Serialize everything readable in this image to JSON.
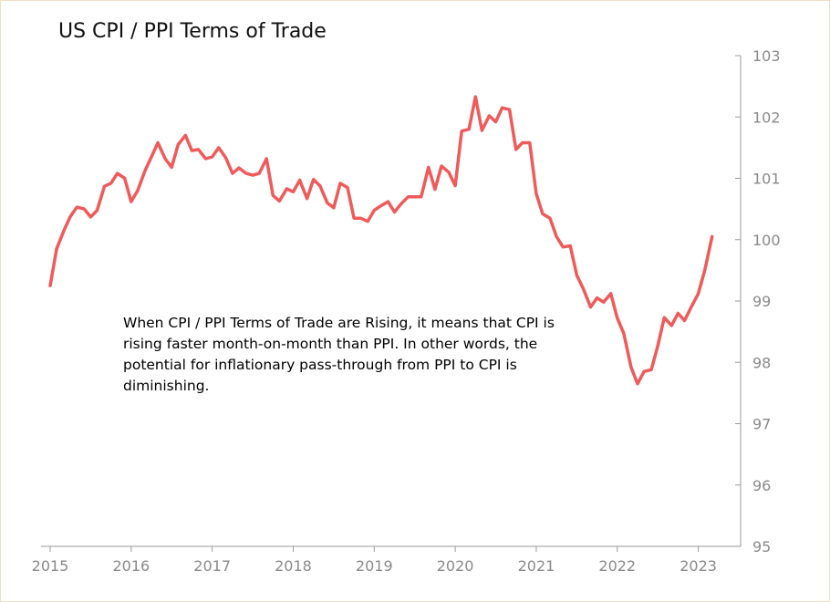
{
  "chart_data": {
    "type": "line",
    "title": "US CPI / PPI Terms of Trade",
    "annotation": "When CPI / PPI Terms of Trade are Rising, it means that CPI is rising faster month-on-month than PPI. In other words, the potential for inflationary pass-through from PPI to CPI is diminishing.",
    "xlabel": "",
    "ylabel": "",
    "x_ticks": [
      "2015",
      "2016",
      "2017",
      "2018",
      "2019",
      "2020",
      "2021",
      "2022",
      "2023"
    ],
    "y_ticks": [
      "95",
      "96",
      "97",
      "98",
      "99",
      "100",
      "101",
      "102",
      "103"
    ],
    "xlim": [
      2015.0,
      2023.5
    ],
    "ylim": [
      95,
      103
    ],
    "y_axis_position": "right",
    "series": [
      {
        "name": "US CPI / PPI Terms of Trade",
        "color": "#f05a5a",
        "x": [
          2015.0,
          2015.08,
          2015.17,
          2015.25,
          2015.33,
          2015.42,
          2015.5,
          2015.58,
          2015.67,
          2015.75,
          2015.83,
          2015.92,
          2016.0,
          2016.08,
          2016.17,
          2016.25,
          2016.33,
          2016.42,
          2016.5,
          2016.58,
          2016.67,
          2016.75,
          2016.83,
          2016.92,
          2017.0,
          2017.08,
          2017.17,
          2017.25,
          2017.33,
          2017.42,
          2017.5,
          2017.58,
          2017.67,
          2017.75,
          2017.83,
          2017.92,
          2018.0,
          2018.08,
          2018.17,
          2018.25,
          2018.33,
          2018.42,
          2018.5,
          2018.58,
          2018.67,
          2018.75,
          2018.83,
          2018.92,
          2019.0,
          2019.08,
          2019.17,
          2019.25,
          2019.33,
          2019.42,
          2019.5,
          2019.58,
          2019.67,
          2019.75,
          2019.83,
          2019.92,
          2020.0,
          2020.08,
          2020.17,
          2020.25,
          2020.33,
          2020.42,
          2020.5,
          2020.58,
          2020.67,
          2020.75,
          2020.83,
          2020.92,
          2021.0,
          2021.08,
          2021.17,
          2021.25,
          2021.33,
          2021.42,
          2021.5,
          2021.58,
          2021.67,
          2021.75,
          2021.83,
          2021.92,
          2022.0,
          2022.08,
          2022.17,
          2022.25,
          2022.33,
          2022.42,
          2022.5,
          2022.58,
          2022.67,
          2022.75,
          2022.83,
          2022.92,
          2023.0,
          2023.08,
          2023.17
        ],
        "values": [
          99.25,
          99.85,
          100.15,
          100.38,
          100.53,
          100.5,
          100.37,
          100.48,
          100.87,
          100.92,
          101.08,
          101.0,
          100.62,
          100.8,
          101.12,
          101.35,
          101.58,
          101.32,
          101.18,
          101.55,
          101.7,
          101.45,
          101.47,
          101.32,
          101.35,
          101.5,
          101.33,
          101.08,
          101.17,
          101.08,
          101.05,
          101.08,
          101.32,
          100.72,
          100.63,
          100.83,
          100.78,
          100.97,
          100.67,
          100.98,
          100.88,
          100.6,
          100.52,
          100.92,
          100.85,
          100.35,
          100.35,
          100.3,
          100.48,
          100.55,
          100.62,
          100.45,
          100.58,
          100.7,
          100.7,
          100.7,
          101.18,
          100.82,
          101.2,
          101.1,
          100.88,
          101.77,
          101.8,
          102.33,
          101.78,
          102.02,
          101.92,
          102.15,
          102.12,
          101.47,
          101.58,
          101.58,
          100.75,
          100.42,
          100.35,
          100.05,
          99.88,
          99.9,
          99.42,
          99.2,
          98.9,
          99.05,
          98.98,
          99.12,
          98.72,
          98.47,
          97.92,
          97.65,
          97.85,
          97.88,
          98.27,
          98.73,
          98.6,
          98.8,
          98.68,
          98.92,
          99.12,
          99.5,
          100.05
        ]
      }
    ]
  }
}
